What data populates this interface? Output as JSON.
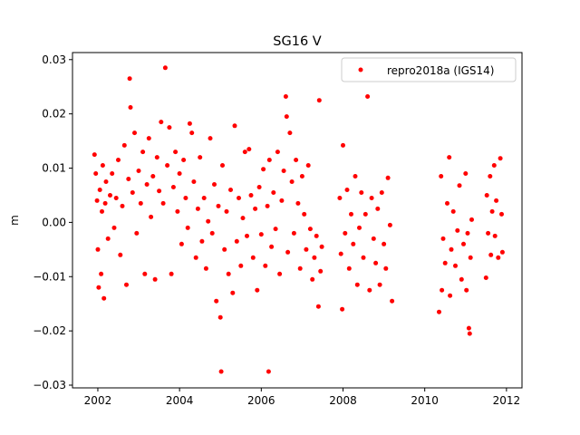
{
  "chart_data": {
    "type": "scatter",
    "title": "SG16 V",
    "xlabel": "",
    "ylabel": "m",
    "xlim": [
      2001.38,
      2012.38
    ],
    "ylim": [
      -0.0305,
      0.0313
    ],
    "xticks": [
      2002,
      2004,
      2006,
      2008,
      2010,
      2012
    ],
    "xtick_labels": [
      "2002",
      "2004",
      "2006",
      "2008",
      "2010",
      "2012"
    ],
    "yticks": [
      0.03,
      0.02,
      0.01,
      0.0,
      -0.01,
      -0.02,
      -0.03
    ],
    "ytick_labels": [
      "0.03",
      "0.02",
      "0.01",
      "0.00",
      "−0.01",
      "−0.02",
      "−0.03"
    ],
    "grid": false,
    "legend": {
      "placement": "top-right",
      "entries": [
        "repro2018a (IGS14)"
      ]
    },
    "series": [
      {
        "name": "repro2018a (IGS14)",
        "color": "#ff0000",
        "marker": "circle",
        "points": [
          [
            2001.92,
            0.0125
          ],
          [
            2001.95,
            0.009
          ],
          [
            2001.98,
            0.004
          ],
          [
            2002.0,
            -0.005
          ],
          [
            2002.02,
            -0.012
          ],
          [
            2002.05,
            0.006
          ],
          [
            2002.08,
            -0.0095
          ],
          [
            2002.1,
            0.002
          ],
          [
            2002.12,
            0.0105
          ],
          [
            2002.15,
            -0.014
          ],
          [
            2002.18,
            0.0035
          ],
          [
            2002.2,
            0.0075
          ],
          [
            2002.25,
            -0.003
          ],
          [
            2002.3,
            0.005
          ],
          [
            2002.35,
            0.009
          ],
          [
            2002.4,
            -0.001
          ],
          [
            2002.45,
            0.0045
          ],
          [
            2002.5,
            0.0115
          ],
          [
            2002.55,
            -0.006
          ],
          [
            2002.6,
            0.003
          ],
          [
            2002.65,
            0.0142
          ],
          [
            2002.7,
            -0.0115
          ],
          [
            2002.75,
            0.008
          ],
          [
            2002.78,
            0.0265
          ],
          [
            2002.8,
            0.0212
          ],
          [
            2002.85,
            0.0055
          ],
          [
            2002.9,
            0.0165
          ],
          [
            2002.95,
            -0.002
          ],
          [
            2003.0,
            0.0095
          ],
          [
            2003.05,
            0.0035
          ],
          [
            2003.1,
            0.013
          ],
          [
            2003.15,
            -0.0095
          ],
          [
            2003.2,
            0.007
          ],
          [
            2003.25,
            0.0155
          ],
          [
            2003.3,
            0.001
          ],
          [
            2003.35,
            0.0085
          ],
          [
            2003.4,
            -0.0105
          ],
          [
            2003.45,
            0.012
          ],
          [
            2003.5,
            0.0058
          ],
          [
            2003.55,
            0.0185
          ],
          [
            2003.6,
            0.0035
          ],
          [
            2003.65,
            0.0285
          ],
          [
            2003.7,
            0.0105
          ],
          [
            2003.75,
            0.0175
          ],
          [
            2003.8,
            -0.0095
          ],
          [
            2003.85,
            0.0065
          ],
          [
            2003.9,
            0.013
          ],
          [
            2003.95,
            0.002
          ],
          [
            2004.0,
            0.009
          ],
          [
            2004.05,
            -0.004
          ],
          [
            2004.1,
            0.0115
          ],
          [
            2004.15,
            0.0045
          ],
          [
            2004.2,
            -0.001
          ],
          [
            2004.25,
            0.0182
          ],
          [
            2004.3,
            0.0165
          ],
          [
            2004.35,
            0.0075
          ],
          [
            2004.4,
            -0.0065
          ],
          [
            2004.45,
            0.0025
          ],
          [
            2004.5,
            0.012
          ],
          [
            2004.55,
            -0.0035
          ],
          [
            2004.6,
            0.0045
          ],
          [
            2004.65,
            -0.0085
          ],
          [
            2004.7,
            0.0002
          ],
          [
            2004.75,
            0.0155
          ],
          [
            2004.8,
            -0.002
          ],
          [
            2004.85,
            0.007
          ],
          [
            2004.9,
            -0.0145
          ],
          [
            2004.95,
            0.003
          ],
          [
            2005.0,
            -0.0175
          ],
          [
            2005.02,
            -0.0275
          ],
          [
            2005.05,
            0.0105
          ],
          [
            2005.1,
            -0.005
          ],
          [
            2005.15,
            0.002
          ],
          [
            2005.2,
            -0.0095
          ],
          [
            2005.25,
            0.006
          ],
          [
            2005.3,
            -0.013
          ],
          [
            2005.35,
            0.0178
          ],
          [
            2005.4,
            -0.0035
          ],
          [
            2005.45,
            0.0045
          ],
          [
            2005.5,
            -0.008
          ],
          [
            2005.55,
            0.0008
          ],
          [
            2005.6,
            0.013
          ],
          [
            2005.65,
            -0.0025
          ],
          [
            2005.7,
            0.0135
          ],
          [
            2005.75,
            0.005
          ],
          [
            2005.8,
            -0.0065
          ],
          [
            2005.85,
            0.0025
          ],
          [
            2005.9,
            -0.0125
          ],
          [
            2005.95,
            0.0065
          ],
          [
            2006.0,
            -0.0022
          ],
          [
            2006.05,
            0.0098
          ],
          [
            2006.1,
            -0.008
          ],
          [
            2006.15,
            0.003
          ],
          [
            2006.18,
            -0.0275
          ],
          [
            2006.2,
            0.0115
          ],
          [
            2006.25,
            -0.0045
          ],
          [
            2006.3,
            0.0055
          ],
          [
            2006.35,
            -0.0012
          ],
          [
            2006.4,
            0.013
          ],
          [
            2006.45,
            -0.0095
          ],
          [
            2006.5,
            0.004
          ],
          [
            2006.55,
            0.0095
          ],
          [
            2006.6,
            0.0232
          ],
          [
            2006.62,
            0.0195
          ],
          [
            2006.65,
            -0.0055
          ],
          [
            2006.7,
            0.0165
          ],
          [
            2006.75,
            0.0075
          ],
          [
            2006.8,
            -0.002
          ],
          [
            2006.85,
            0.0115
          ],
          [
            2006.9,
            0.0035
          ],
          [
            2006.95,
            -0.0085
          ],
          [
            2007.0,
            0.0085
          ],
          [
            2007.05,
            0.0015
          ],
          [
            2007.1,
            -0.005
          ],
          [
            2007.15,
            0.0105
          ],
          [
            2007.2,
            -0.0012
          ],
          [
            2007.25,
            -0.0105
          ],
          [
            2007.3,
            -0.0065
          ],
          [
            2007.35,
            -0.0025
          ],
          [
            2007.4,
            -0.0155
          ],
          [
            2007.42,
            0.0225
          ],
          [
            2007.45,
            -0.009
          ],
          [
            2007.48,
            -0.0045
          ],
          [
            2007.92,
            0.0045
          ],
          [
            2007.95,
            -0.0058
          ],
          [
            2007.98,
            -0.016
          ],
          [
            2008.0,
            0.0142
          ],
          [
            2008.05,
            -0.002
          ],
          [
            2008.1,
            0.006
          ],
          [
            2008.15,
            -0.0085
          ],
          [
            2008.2,
            0.0015
          ],
          [
            2008.25,
            -0.004
          ],
          [
            2008.3,
            0.0085
          ],
          [
            2008.35,
            -0.0115
          ],
          [
            2008.4,
            -0.001
          ],
          [
            2008.45,
            0.0055
          ],
          [
            2008.5,
            -0.0065
          ],
          [
            2008.55,
            0.0015
          ],
          [
            2008.6,
            0.0232
          ],
          [
            2008.65,
            -0.0125
          ],
          [
            2008.7,
            0.0045
          ],
          [
            2008.75,
            -0.003
          ],
          [
            2008.8,
            -0.0075
          ],
          [
            2008.85,
            0.0025
          ],
          [
            2008.9,
            -0.0115
          ],
          [
            2008.95,
            0.0055
          ],
          [
            2009.0,
            -0.004
          ],
          [
            2009.05,
            -0.0085
          ],
          [
            2009.1,
            0.0082
          ],
          [
            2009.15,
            -0.0005
          ],
          [
            2009.2,
            -0.0145
          ],
          [
            2010.35,
            -0.0165
          ],
          [
            2010.4,
            0.0085
          ],
          [
            2010.42,
            -0.0125
          ],
          [
            2010.45,
            -0.003
          ],
          [
            2010.5,
            -0.0075
          ],
          [
            2010.55,
            0.0035
          ],
          [
            2010.6,
            0.012
          ],
          [
            2010.62,
            -0.0135
          ],
          [
            2010.65,
            -0.005
          ],
          [
            2010.7,
            0.002
          ],
          [
            2010.75,
            -0.008
          ],
          [
            2010.8,
            -0.0015
          ],
          [
            2010.85,
            0.0068
          ],
          [
            2010.9,
            -0.0105
          ],
          [
            2010.95,
            -0.004
          ],
          [
            2011.0,
            0.009
          ],
          [
            2011.02,
            -0.0125
          ],
          [
            2011.05,
            -0.002
          ],
          [
            2011.08,
            -0.0195
          ],
          [
            2011.1,
            -0.0205
          ],
          [
            2011.12,
            -0.0065
          ],
          [
            2011.15,
            0.0005
          ],
          [
            2011.5,
            -0.0102
          ],
          [
            2011.52,
            0.005
          ],
          [
            2011.55,
            -0.002
          ],
          [
            2011.6,
            0.0085
          ],
          [
            2011.62,
            -0.006
          ],
          [
            2011.65,
            0.002
          ],
          [
            2011.7,
            0.0105
          ],
          [
            2011.72,
            -0.0025
          ],
          [
            2011.75,
            0.004
          ],
          [
            2011.8,
            -0.0065
          ],
          [
            2011.85,
            0.0118
          ],
          [
            2011.88,
            0.0015
          ],
          [
            2011.9,
            -0.0055
          ]
        ]
      }
    ]
  }
}
